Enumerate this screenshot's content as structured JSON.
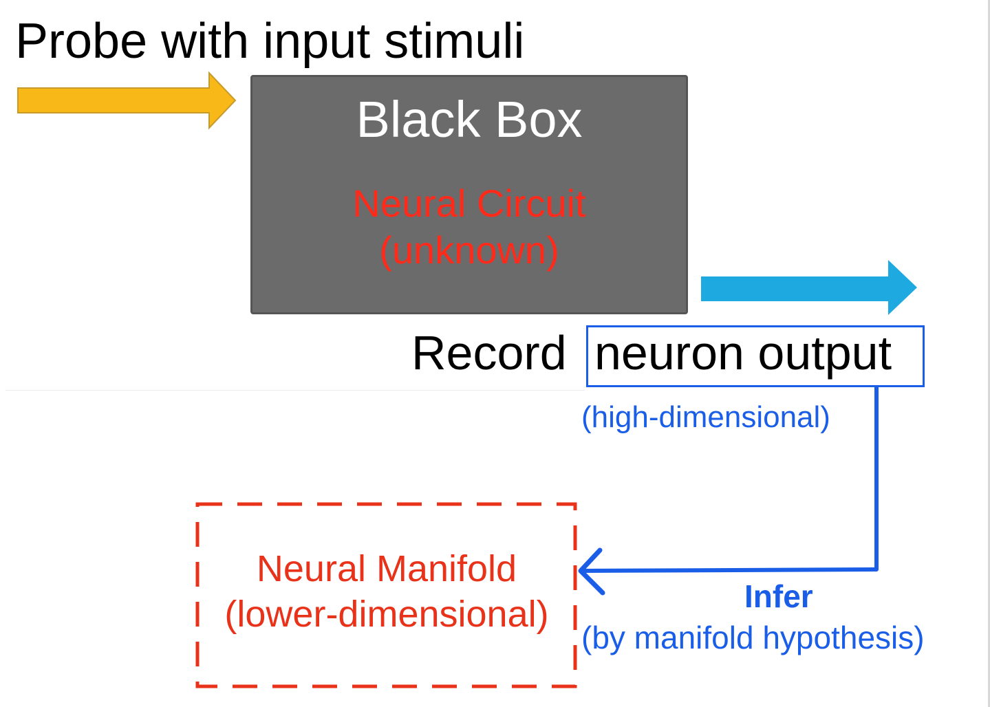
{
  "probe": {
    "title": "Probe with input stimuli"
  },
  "black_box": {
    "title": "Black Box",
    "circuit_line1": "Neural Circuit",
    "circuit_line2": "(unknown)"
  },
  "record": {
    "prefix": "Record",
    "highlight": "neuron output",
    "note": "(high-dimensional)"
  },
  "manifold": {
    "line1": "Neural Manifold",
    "line2": "(lower-dimensional)"
  },
  "infer": {
    "label": "Infer",
    "note": "(by manifold hypothesis)"
  },
  "colors": {
    "input_arrow": "#f7b818",
    "output_arrow": "#1fa9e1",
    "black_box": "#6b6b6b",
    "circuit_text": "#ff2a1a",
    "connector": "#1a5ee8",
    "manifold": "#e8321a"
  }
}
